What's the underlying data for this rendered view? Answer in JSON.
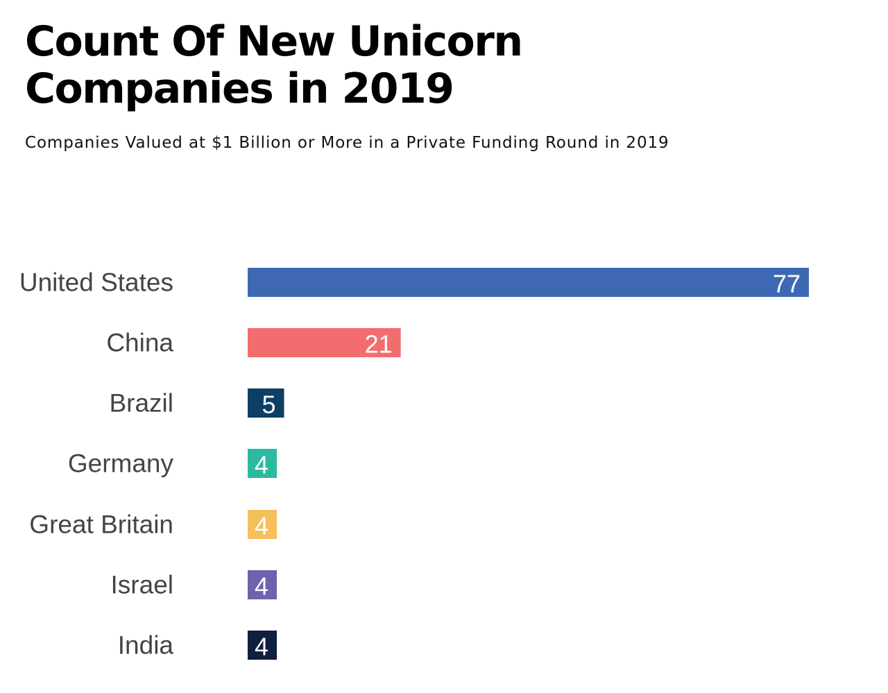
{
  "title_lines": [
    "Count Of New Unicorn",
    "Companies in 2019"
  ],
  "subtitle": "Companies Valued at $1 Billion or More in a Private Funding Round in 2019",
  "chart_data": {
    "type": "bar",
    "orientation": "horizontal",
    "title": "Count Of New Unicorn Companies in 2019",
    "subtitle": "Companies Valued at $1 Billion or More in a Private Funding Round in 2019",
    "categories": [
      "United States",
      "China",
      "Brazil",
      "Germany",
      "Great Britain",
      "Israel",
      "India"
    ],
    "values": [
      77,
      21,
      5,
      4,
      4,
      4,
      4
    ],
    "colors": [
      "#3e69b2",
      "#f36d6e",
      "#0c3f63",
      "#2bbaa0",
      "#f5bf5c",
      "#6e62ad",
      "#0f1f3f"
    ],
    "xlim": [
      0,
      77
    ],
    "grid": false,
    "legend": "none",
    "data_labels": true
  }
}
